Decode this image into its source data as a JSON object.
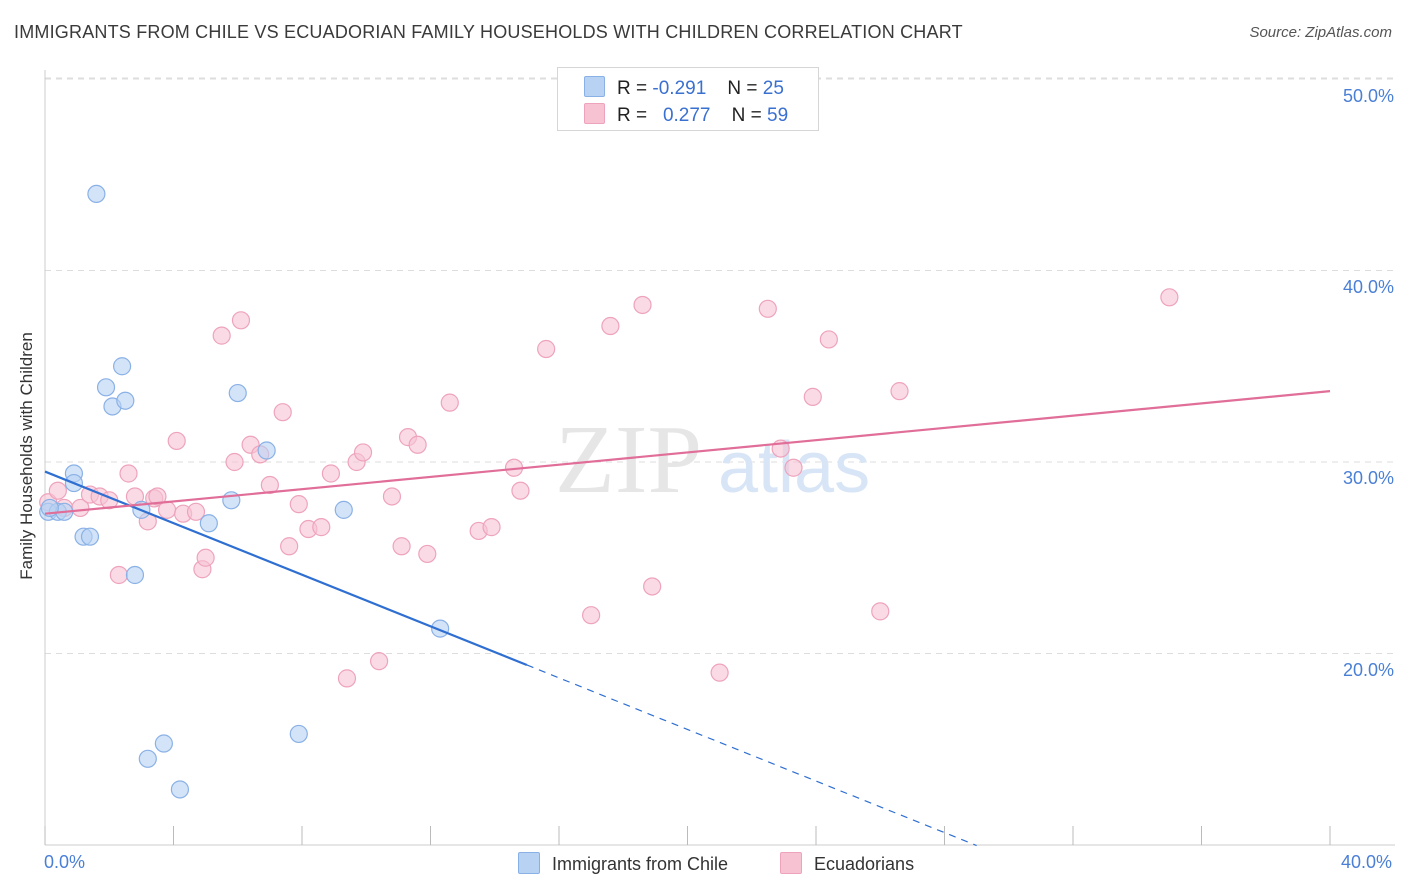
{
  "header": {
    "title": "IMMIGRANTS FROM CHILE VS ECUADORIAN FAMILY HOUSEHOLDS WITH CHILDREN CORRELATION CHART",
    "source": "Source: ZipAtlas.com"
  },
  "watermark": {
    "zip": "ZIP",
    "atlas": "atlas"
  },
  "stats_legend": {
    "rows": [
      {
        "r_label": "R =",
        "r_value": "-0.291",
        "n_label": "N =",
        "n_value": "25"
      },
      {
        "r_label": "R =",
        "r_value": "0.277",
        "n_label": "N =",
        "n_value": "59"
      }
    ]
  },
  "colors": {
    "blue_fill": "#b8d2f3",
    "blue_stroke": "#8ab1e6",
    "blue_line": "#2f6fd1",
    "pink_fill": "#f7c3d3",
    "pink_stroke": "#eea3bc",
    "pink_line": "#e06e98",
    "grid": "#dddddd",
    "tick_text": "#4a7fd6"
  },
  "chart_data": {
    "type": "scatter",
    "title": "IMMIGRANTS FROM CHILE VS ECUADORIAN FAMILY HOUSEHOLDS WITH CHILDREN CORRELATION CHART",
    "xlabel": "",
    "ylabel": "Family Households with Children",
    "xlim": [
      0,
      40
    ],
    "ylim": [
      10,
      51
    ],
    "x_tick_labels": [
      "0.0%",
      "40.0%"
    ],
    "y_ticks": [
      20,
      30,
      40,
      50
    ],
    "y_tick_labels": [
      "20.0%",
      "30.0%",
      "40.0%",
      "50.0%"
    ],
    "grid": true,
    "legend_position": "bottom-center",
    "series": [
      {
        "name": "Immigrants from Chile",
        "r": -0.291,
        "n": 25,
        "trend": {
          "x0": 0.0,
          "y0": 29.5,
          "x1": 15.0,
          "y1": 19.4,
          "dash_to_x": 29.0
        },
        "points": [
          [
            0.1,
            27.4
          ],
          [
            0.4,
            27.4
          ],
          [
            0.6,
            27.4
          ],
          [
            0.9,
            29.4
          ],
          [
            0.9,
            28.9
          ],
          [
            1.2,
            26.1
          ],
          [
            1.4,
            26.1
          ],
          [
            1.6,
            44.0
          ],
          [
            1.9,
            33.9
          ],
          [
            2.1,
            32.9
          ],
          [
            2.4,
            35.0
          ],
          [
            2.5,
            33.2
          ],
          [
            2.8,
            24.1
          ],
          [
            3.0,
            27.5
          ],
          [
            3.2,
            14.5
          ],
          [
            3.7,
            15.3
          ],
          [
            4.2,
            12.9
          ],
          [
            5.1,
            26.8
          ],
          [
            5.8,
            28.0
          ],
          [
            6.0,
            33.6
          ],
          [
            6.9,
            30.6
          ],
          [
            7.9,
            15.8
          ],
          [
            9.3,
            27.5
          ],
          [
            12.3,
            21.3
          ],
          [
            0.15,
            27.6
          ]
        ]
      },
      {
        "name": "Ecuadorians",
        "r": 0.277,
        "n": 59,
        "trend": {
          "x0": 0.0,
          "y0": 27.3,
          "x1": 40.0,
          "y1": 33.7
        },
        "points": [
          [
            0.1,
            27.9
          ],
          [
            0.4,
            28.5
          ],
          [
            0.6,
            27.6
          ],
          [
            1.1,
            27.6
          ],
          [
            1.4,
            28.3
          ],
          [
            1.7,
            28.2
          ],
          [
            2.0,
            28.0
          ],
          [
            2.3,
            24.1
          ],
          [
            2.6,
            29.4
          ],
          [
            2.8,
            28.2
          ],
          [
            3.2,
            26.9
          ],
          [
            3.4,
            28.1
          ],
          [
            3.5,
            28.2
          ],
          [
            3.8,
            27.5
          ],
          [
            4.1,
            31.1
          ],
          [
            4.3,
            27.3
          ],
          [
            4.7,
            27.4
          ],
          [
            4.9,
            24.4
          ],
          [
            5.0,
            25.0
          ],
          [
            5.5,
            36.6
          ],
          [
            5.9,
            30.0
          ],
          [
            6.1,
            37.4
          ],
          [
            6.4,
            30.9
          ],
          [
            6.7,
            30.4
          ],
          [
            7.0,
            28.8
          ],
          [
            7.4,
            32.6
          ],
          [
            7.6,
            25.6
          ],
          [
            7.9,
            27.8
          ],
          [
            8.2,
            26.5
          ],
          [
            8.6,
            26.6
          ],
          [
            8.9,
            29.4
          ],
          [
            9.4,
            18.7
          ],
          [
            9.7,
            30.0
          ],
          [
            9.9,
            30.5
          ],
          [
            10.4,
            19.6
          ],
          [
            10.8,
            28.2
          ],
          [
            11.1,
            25.6
          ],
          [
            11.3,
            31.3
          ],
          [
            11.6,
            30.9
          ],
          [
            11.9,
            25.2
          ],
          [
            12.6,
            33.1
          ],
          [
            13.5,
            26.4
          ],
          [
            13.9,
            26.6
          ],
          [
            14.6,
            29.7
          ],
          [
            14.8,
            28.5
          ],
          [
            15.6,
            35.9
          ],
          [
            17.0,
            22.0
          ],
          [
            17.6,
            37.1
          ],
          [
            18.6,
            38.2
          ],
          [
            18.9,
            23.5
          ],
          [
            21.0,
            19.0
          ],
          [
            22.5,
            38.0
          ],
          [
            22.9,
            30.7
          ],
          [
            23.3,
            29.7
          ],
          [
            23.9,
            33.4
          ],
          [
            24.4,
            36.4
          ],
          [
            26.0,
            22.2
          ],
          [
            26.6,
            33.7
          ],
          [
            35.0,
            38.6
          ]
        ]
      }
    ]
  }
}
